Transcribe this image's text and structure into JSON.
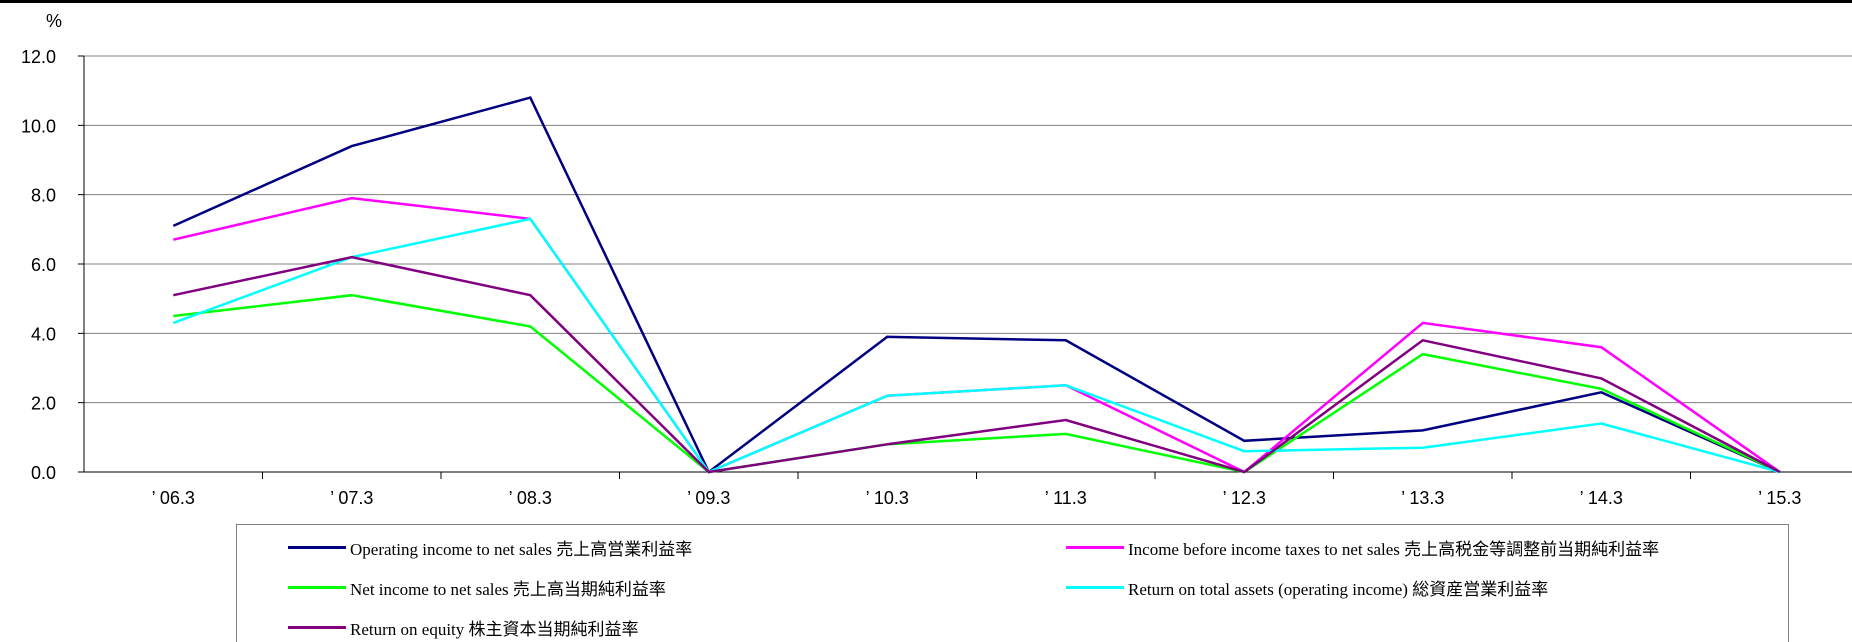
{
  "chart_data": {
    "type": "line",
    "ylabel": "%",
    "ylim": [
      0,
      12
    ],
    "yticks": [
      "0.0",
      "2.0",
      "4.0",
      "6.0",
      "8.0",
      "10.0",
      "12.0"
    ],
    "categories": [
      "’ 06.3",
      "’ 07.3",
      "’ 08.3",
      "’ 09.3",
      "’ 10.3",
      "’ 11.3",
      "’ 12.3",
      "’ 13.3",
      "’ 14.3",
      "’ 15.3"
    ],
    "grid": true,
    "legend_position": "bottom",
    "series": [
      {
        "name": "Operating income to net sales 売上高営業利益率",
        "color": "#000080",
        "values": [
          7.1,
          9.4,
          10.8,
          0.0,
          3.9,
          3.8,
          0.9,
          1.2,
          2.3,
          0.0
        ]
      },
      {
        "name": "Income before income taxes to net sales 売上高税金等調整前当期純利益率",
        "color": "#ff00ff",
        "values": [
          6.7,
          7.9,
          7.3,
          0.0,
          2.2,
          2.5,
          0.0,
          4.3,
          3.6,
          0.0
        ]
      },
      {
        "name": "Net income to net sales 売上高当期純利益率",
        "color": "#00ff00",
        "values": [
          4.5,
          5.1,
          4.2,
          0.0,
          0.8,
          1.1,
          0.0,
          3.4,
          2.4,
          0.0
        ]
      },
      {
        "name": "Return on total assets (operating income) 総資産営業利益率",
        "color": "#00ffff",
        "values": [
          4.3,
          6.2,
          7.3,
          0.0,
          2.2,
          2.5,
          0.6,
          0.7,
          1.4,
          0.0
        ]
      },
      {
        "name": "Return on equity 株主資本当期純利益率",
        "color": "#800080",
        "values": [
          5.1,
          6.2,
          5.1,
          0.0,
          0.8,
          1.5,
          0.0,
          3.8,
          2.7,
          0.0
        ]
      }
    ]
  }
}
